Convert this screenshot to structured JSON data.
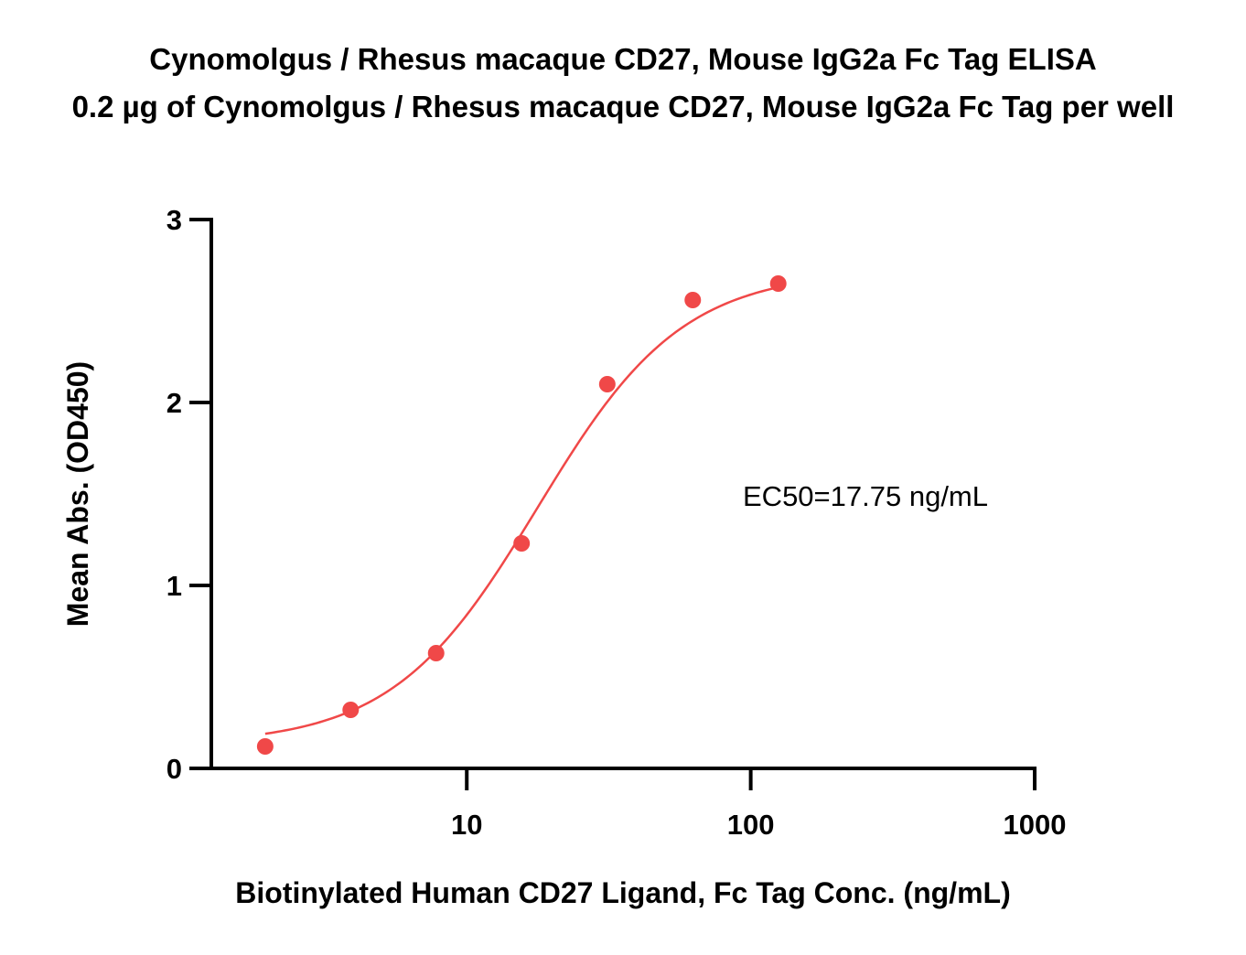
{
  "chart_data": {
    "type": "scatter",
    "title": "Cynomolgus / Rhesus macaque CD27, Mouse IgG2a Fc Tag ELISA",
    "subtitle": "0.2 µg of Cynomolgus / Rhesus macaque CD27, Mouse IgG2a Fc Tag per well",
    "xlabel": "Biotinylated Human CD27 Ligand, Fc Tag Conc. (ng/mL)",
    "ylabel": "Mean Abs. (OD450)",
    "x_scale": "log",
    "xlim": [
      1.26,
      1000
    ],
    "ylim": [
      0,
      3
    ],
    "x_ticks": [
      10,
      100,
      1000
    ],
    "x_tick_labels": [
      "10",
      "100",
      "1000"
    ],
    "y_ticks": [
      0,
      1,
      2,
      3
    ],
    "y_tick_labels": [
      "0",
      "1",
      "2",
      "3"
    ],
    "grid": false,
    "series": [
      {
        "color": "#f04848",
        "x": [
          1.95,
          3.9,
          7.8,
          15.6,
          31.25,
          62.5,
          125
        ],
        "y": [
          0.12,
          0.32,
          0.63,
          1.23,
          2.1,
          2.56,
          2.65
        ]
      }
    ],
    "fit_curve": {
      "type": "4PL",
      "bottom": 0.13,
      "top": 2.72,
      "ec50": 17.75,
      "hill": 1.7,
      "x_range": [
        1.95,
        125
      ],
      "color": "#f04848"
    },
    "annotations": [
      {
        "text": "EC50=17.75 ng/mL"
      }
    ]
  }
}
